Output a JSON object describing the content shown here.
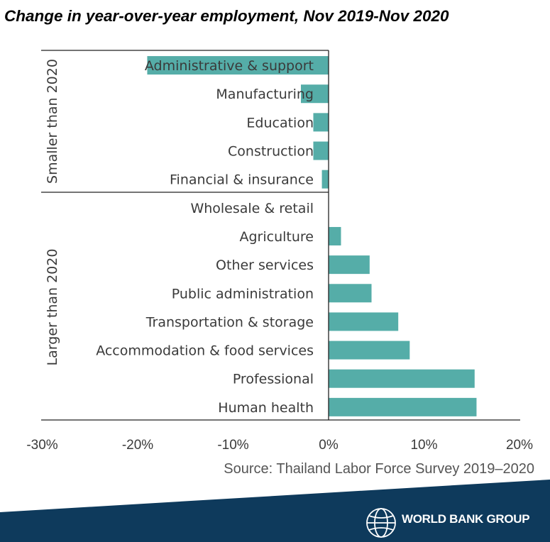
{
  "chart_data": {
    "type": "bar",
    "orientation": "horizontal",
    "title": "Change in year-over-year employment, Nov 2019-Nov 2020",
    "xlabel": "",
    "ylabel": "",
    "xlim": [
      -30,
      20
    ],
    "xticks": [
      "-30%",
      "-20%",
      "-10%",
      "0%",
      "10%",
      "20%"
    ],
    "xtick_values": [
      -30,
      -20,
      -10,
      0,
      10,
      20
    ],
    "groups": [
      {
        "label": "Smaller than 2020",
        "categories": [
          "Administrative & support",
          "Manufacturing",
          "Education",
          "Construction",
          "Financial & insurance"
        ]
      },
      {
        "label": "Larger than 2020",
        "categories": [
          "Wholesale & retail",
          "Agriculture",
          "Other services",
          "Public administration",
          "Transportation & storage",
          "Accommodation & food services",
          "Professional",
          "Human health"
        ]
      }
    ],
    "categories": [
      "Administrative & support",
      "Manufacturing",
      "Education",
      "Construction",
      "Financial & insurance",
      "Wholesale & retail",
      "Agriculture",
      "Other services",
      "Public administration",
      "Transportation & storage",
      "Accommodation & food services",
      "Professional",
      "Human health"
    ],
    "values": [
      -19.0,
      -2.9,
      -1.6,
      -1.6,
      -0.7,
      0.0,
      1.3,
      4.3,
      4.5,
      7.3,
      8.5,
      15.3,
      15.5
    ],
    "unit": "%",
    "grid": false,
    "bar_color": "#55ada8"
  },
  "source": "Source: Thailand Labor Force Survey 2019–2020",
  "brand": {
    "name": "WORLD BANK GROUP",
    "footer_color": "#0e3a5c"
  }
}
